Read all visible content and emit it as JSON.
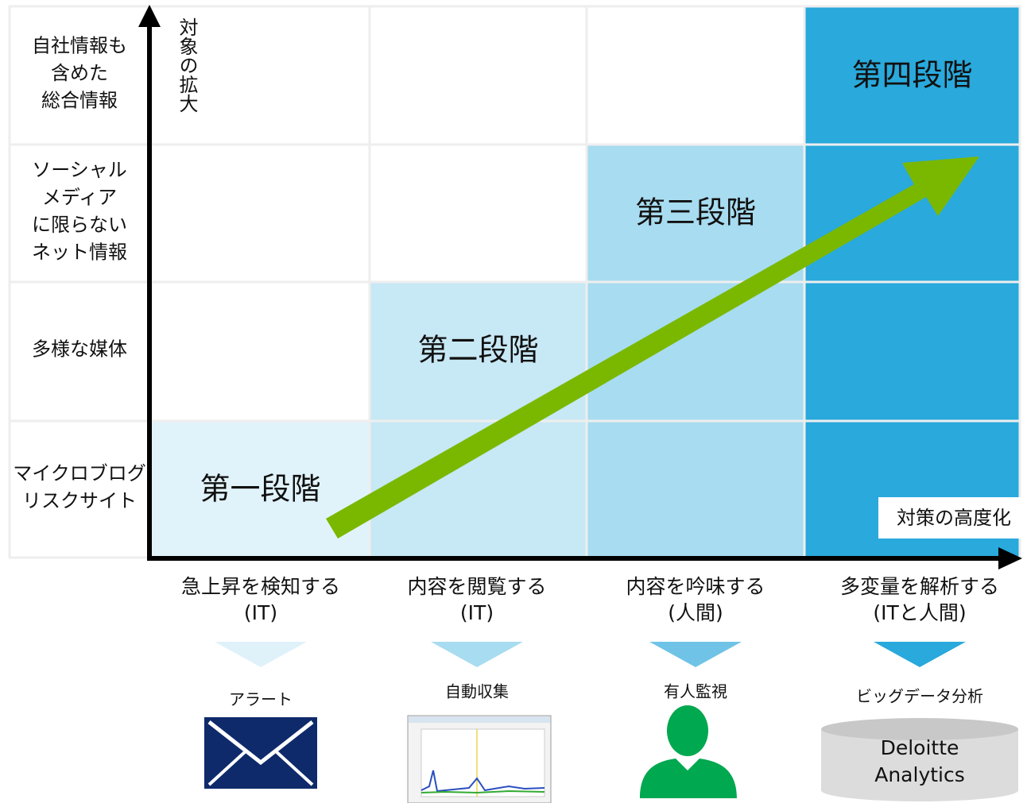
{
  "y_axis": {
    "label": "対象の拡大"
  },
  "x_axis": {
    "label": "対策の高度化"
  },
  "rows": [
    {
      "lines": [
        "自社情報も",
        "含めた",
        "総合情報"
      ]
    },
    {
      "lines": [
        "ソーシャル",
        "メディア",
        "に限らない",
        "ネット情報"
      ]
    },
    {
      "lines": [
        "多様な媒体"
      ]
    },
    {
      "lines": [
        "マイクロブログ",
        "リスクサイト"
      ]
    }
  ],
  "columns": [
    {
      "lines": [
        "急上昇を検知する",
        "(IT)"
      ],
      "tool": "アラート"
    },
    {
      "lines": [
        "内容を閲覧する",
        "(IT)"
      ],
      "tool": "自動収集"
    },
    {
      "lines": [
        "内容を吟味する",
        "(人間)"
      ],
      "tool": "有人監視"
    },
    {
      "lines": [
        "多変量を解析する",
        "(ITと人間)"
      ],
      "tool": "ビッグデータ分析",
      "database": [
        "Deloitte",
        "Analytics"
      ]
    }
  ],
  "stages": [
    "第一段階",
    "第二段階",
    "第三段階",
    "第四段階"
  ]
}
